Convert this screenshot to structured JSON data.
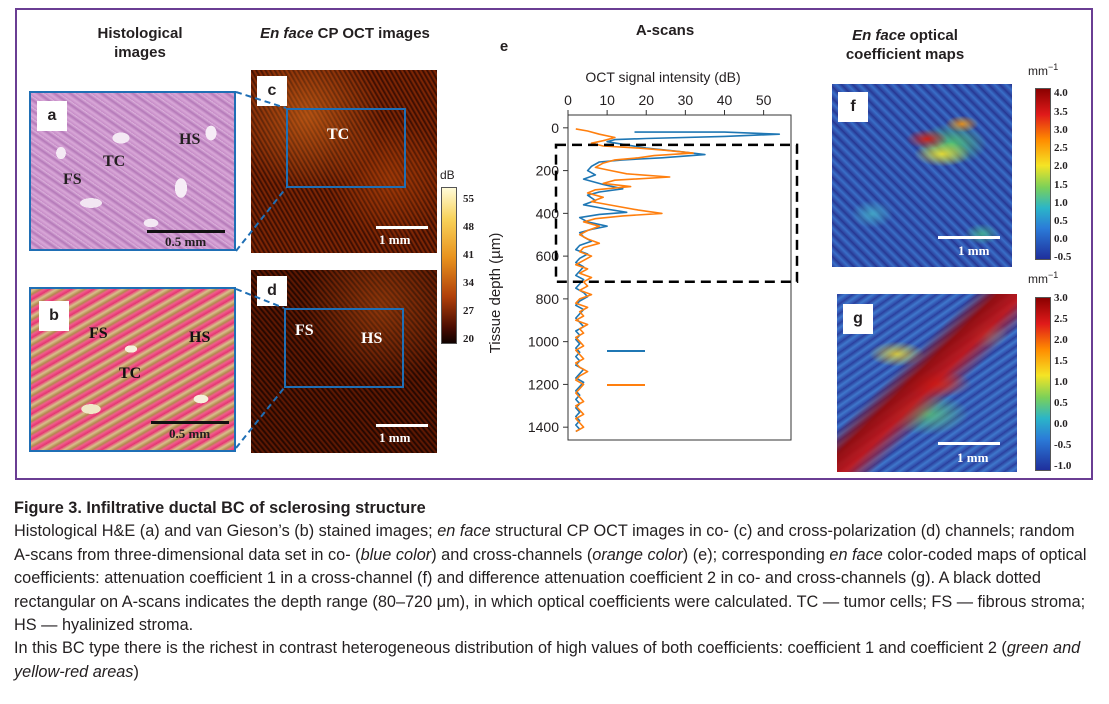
{
  "headers": {
    "histology": "Histological images",
    "oct_italic": "En face",
    "oct_rest": " CP OCT images",
    "ascans": "A-scans",
    "maps_italic": "En face",
    "maps_rest": " optical coefficient maps"
  },
  "panels": {
    "a": {
      "label": "a",
      "TC": "TC",
      "FS": "FS",
      "HS": "HS",
      "scale": "0.5 mm"
    },
    "b": {
      "label": "b",
      "TC": "TC",
      "FS": "FS",
      "HS": "HS",
      "scale": "0.5 mm"
    },
    "c": {
      "label": "c",
      "TC": "TC",
      "scale": "1 mm"
    },
    "d": {
      "label": "d",
      "FS": "FS",
      "HS": "HS",
      "scale": "1 mm"
    },
    "e": {
      "label": "e"
    },
    "f": {
      "label": "f",
      "scale": "1 mm"
    },
    "g": {
      "label": "g",
      "scale": "1 mm"
    }
  },
  "colorbars": {
    "oct": {
      "unit": "dB",
      "ticks": [
        "55",
        "48",
        "41",
        "34",
        "27",
        "20"
      ]
    },
    "f": {
      "unit": "mm",
      "unit_sup": "−1",
      "ticks": [
        "4.0",
        "3.5",
        "3.0",
        "2.5",
        "2.0",
        "1.5",
        "1.0",
        "0.5",
        "0.0",
        "-0.5"
      ]
    },
    "g": {
      "unit": "mm",
      "unit_sup": "−1",
      "ticks": [
        "3.0",
        "2.5",
        "2.0",
        "1.5",
        "1.0",
        "0.5",
        "0.0",
        "-0.5",
        "-1.0"
      ]
    }
  },
  "chart_data": {
    "type": "line",
    "xlabel": "OCT signal intensity (dB)",
    "ylabel": "Tissue depth (µm)",
    "xlim": [
      0,
      57
    ],
    "ylim": [
      1460,
      -60
    ],
    "x_ticks": [
      "0",
      "10",
      "20",
      "30",
      "40",
      "50"
    ],
    "y_ticks": [
      "0",
      "200",
      "400",
      "600",
      "800",
      "1000",
      "1200",
      "1400"
    ],
    "depth_range_box": [
      80,
      720
    ],
    "colors": {
      "co": "#1f77b4",
      "cross": "#ff7f0e"
    },
    "series": [
      {
        "color": "#1f77b4",
        "points": [
          [
            17,
            20
          ],
          [
            40,
            20
          ],
          [
            54,
            30
          ],
          [
            40,
            40
          ],
          [
            20,
            50
          ],
          [
            12,
            55
          ],
          [
            10,
            65
          ],
          [
            15,
            80
          ],
          [
            20,
            95
          ],
          [
            28,
            110
          ],
          [
            35,
            125
          ],
          [
            24,
            140
          ],
          [
            14,
            150
          ],
          [
            8,
            160
          ],
          [
            6,
            180
          ],
          [
            5,
            200
          ],
          [
            7,
            220
          ],
          [
            4,
            240
          ],
          [
            9,
            265
          ],
          [
            14,
            285
          ],
          [
            8,
            300
          ],
          [
            5,
            315
          ],
          [
            7,
            340
          ],
          [
            4,
            360
          ],
          [
            10,
            380
          ],
          [
            15,
            395
          ],
          [
            8,
            405
          ],
          [
            3,
            420
          ],
          [
            5,
            440
          ],
          [
            10,
            460
          ],
          [
            6,
            475
          ],
          [
            3,
            490
          ],
          [
            4,
            510
          ],
          [
            6,
            530
          ],
          [
            3,
            550
          ],
          [
            2,
            570
          ],
          [
            5,
            590
          ],
          [
            3,
            610
          ],
          [
            2,
            630
          ],
          [
            4,
            650
          ],
          [
            3,
            670
          ],
          [
            2,
            690
          ],
          [
            4,
            710
          ],
          [
            3,
            730
          ],
          [
            2,
            750
          ],
          [
            4,
            770
          ],
          [
            5,
            790
          ],
          [
            3,
            810
          ],
          [
            2,
            830
          ],
          [
            4,
            850
          ],
          [
            3,
            870
          ],
          [
            2,
            890
          ],
          [
            3,
            910
          ],
          [
            4,
            930
          ],
          [
            2,
            950
          ],
          [
            3,
            970
          ],
          [
            2,
            990
          ],
          [
            3,
            1010
          ],
          [
            2,
            1030
          ],
          [
            3,
            1050
          ],
          [
            2,
            1070
          ],
          [
            3,
            1090
          ],
          [
            2,
            1110
          ],
          [
            4,
            1130
          ],
          [
            3,
            1150
          ],
          [
            2,
            1170
          ],
          [
            4,
            1190
          ],
          [
            3,
            1210
          ],
          [
            2,
            1230
          ],
          [
            3,
            1250
          ],
          [
            2,
            1270
          ],
          [
            3,
            1290
          ],
          [
            2,
            1310
          ],
          [
            3,
            1330
          ],
          [
            2,
            1350
          ],
          [
            3,
            1370
          ],
          [
            2,
            1390
          ],
          [
            3,
            1410
          ],
          [
            2,
            1420
          ]
        ]
      },
      {
        "color": "#ff7f0e",
        "points": [
          [
            2,
            5
          ],
          [
            5,
            15
          ],
          [
            8,
            30
          ],
          [
            12,
            45
          ],
          [
            9,
            60
          ],
          [
            6,
            72
          ],
          [
            9,
            85
          ],
          [
            18,
            95
          ],
          [
            25,
            105
          ],
          [
            32,
            118
          ],
          [
            22,
            130
          ],
          [
            18,
            140
          ],
          [
            12,
            150
          ],
          [
            9,
            165
          ],
          [
            7,
            185
          ],
          [
            11,
            200
          ],
          [
            15,
            215
          ],
          [
            26,
            230
          ],
          [
            12,
            245
          ],
          [
            9,
            260
          ],
          [
            16,
            275
          ],
          [
            7,
            290
          ],
          [
            5,
            305
          ],
          [
            9,
            325
          ],
          [
            6,
            345
          ],
          [
            12,
            365
          ],
          [
            18,
            385
          ],
          [
            24,
            400
          ],
          [
            14,
            412
          ],
          [
            7,
            425
          ],
          [
            4,
            440
          ],
          [
            8,
            460
          ],
          [
            5,
            480
          ],
          [
            3,
            500
          ],
          [
            5,
            520
          ],
          [
            8,
            540
          ],
          [
            4,
            560
          ],
          [
            3,
            580
          ],
          [
            6,
            600
          ],
          [
            4,
            620
          ],
          [
            2,
            640
          ],
          [
            5,
            660
          ],
          [
            3,
            680
          ],
          [
            6,
            700
          ],
          [
            4,
            720
          ],
          [
            5,
            740
          ],
          [
            3,
            760
          ],
          [
            6,
            780
          ],
          [
            3,
            800
          ],
          [
            2,
            820
          ],
          [
            5,
            840
          ],
          [
            3,
            860
          ],
          [
            4,
            880
          ],
          [
            2,
            900
          ],
          [
            5,
            920
          ],
          [
            3,
            940
          ],
          [
            4,
            960
          ],
          [
            2,
            980
          ],
          [
            3,
            1000
          ],
          [
            4,
            1020
          ],
          [
            2,
            1040
          ],
          [
            3,
            1060
          ],
          [
            4,
            1080
          ],
          [
            2,
            1100
          ],
          [
            3,
            1120
          ],
          [
            5,
            1140
          ],
          [
            3,
            1160
          ],
          [
            2,
            1180
          ],
          [
            4,
            1200
          ],
          [
            3,
            1220
          ],
          [
            2,
            1240
          ],
          [
            3,
            1260
          ],
          [
            4,
            1280
          ],
          [
            2,
            1300
          ],
          [
            3,
            1320
          ],
          [
            4,
            1340
          ],
          [
            2,
            1360
          ],
          [
            3,
            1380
          ],
          [
            4,
            1400
          ],
          [
            2,
            1420
          ]
        ]
      }
    ]
  },
  "caption": {
    "title": "Figure 3. Infiltrative ductal BC of sclerosing structure",
    "p1_a": "Histological H&E (a) and van Gieson’s (b) stained images; ",
    "p1_b": "en face",
    "p1_c": " structural CP OCT images in co- (c) and cross-polarization (d) channels; random A-scans from three-dimensional data set in co- (",
    "p1_d": "blue color",
    "p1_e": ") and cross-channels (",
    "p1_f": "orange color",
    "p1_g": ") (e); corresponding ",
    "p1_h": "en face",
    "p1_i": " color-coded maps of optical coefficients: attenuation coefficient 1 in a cross-channel (f) and difference attenuation coefficient 2 in co- and cross-channels (g). A black dotted rectangular on A-scans indicates the depth range (80–720 μm), in which optical coefficients were calculated. TC — tumor cells; FS — fibrous stroma; HS — hyalinized stroma.",
    "p2_a": "In this BC type there is the richest in contrast heterogeneous distribution of high values of both coefficients: coefficient 1 and coefficient 2 (",
    "p2_b": "green and yellow-red areas",
    "p2_c": ")"
  }
}
